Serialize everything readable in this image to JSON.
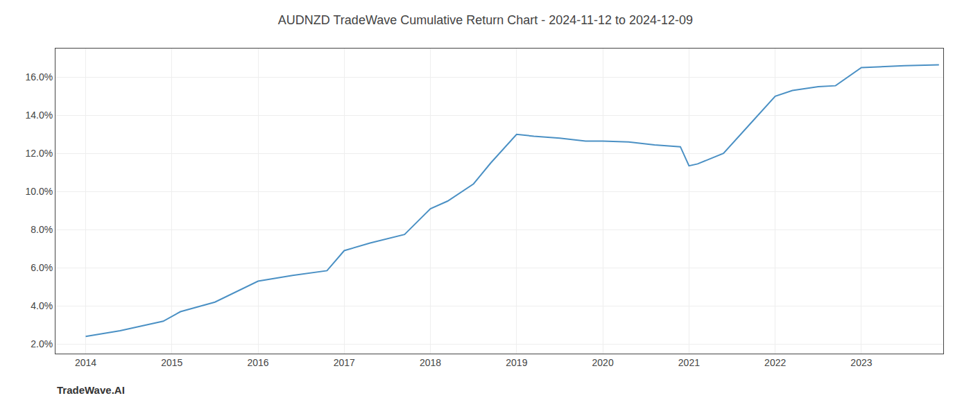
{
  "chart_data": {
    "type": "line",
    "title": "AUDNZD TradeWave Cumulative Return Chart - 2024-11-12 to 2024-12-09",
    "annotations": [
      "TradeWave.AI"
    ],
    "x": [
      2014.0,
      2014.4,
      2014.9,
      2015.1,
      2015.5,
      2016.0,
      2016.4,
      2016.8,
      2017.0,
      2017.3,
      2017.7,
      2018.0,
      2018.2,
      2018.5,
      2018.7,
      2019.0,
      2019.2,
      2019.5,
      2019.8,
      2020.0,
      2020.3,
      2020.6,
      2020.9,
      2021.0,
      2021.1,
      2021.4,
      2021.7,
      2022.0,
      2022.2,
      2022.5,
      2022.7,
      2023.0,
      2023.5,
      2023.9
    ],
    "values": [
      2.4,
      2.7,
      3.2,
      3.7,
      4.2,
      5.3,
      5.6,
      5.85,
      6.9,
      7.3,
      7.75,
      9.1,
      9.5,
      10.4,
      11.5,
      13.0,
      12.9,
      12.8,
      12.65,
      12.65,
      12.6,
      12.45,
      12.35,
      11.35,
      11.45,
      12.0,
      13.5,
      15.0,
      15.3,
      15.5,
      15.55,
      16.5,
      16.6,
      16.65
    ],
    "color": "#4a90c4",
    "xlim": [
      2013.65,
      2023.95
    ],
    "ylim": [
      1.5,
      17.5
    ],
    "xticks": [
      2014,
      2015,
      2016,
      2017,
      2018,
      2019,
      2020,
      2021,
      2022,
      2023
    ],
    "yticks": [
      {
        "value": 2.0,
        "label": "2.0%"
      },
      {
        "value": 4.0,
        "label": "4.0%"
      },
      {
        "value": 6.0,
        "label": "6.0%"
      },
      {
        "value": 8.0,
        "label": "8.0%"
      },
      {
        "value": 10.0,
        "label": "10.0%"
      },
      {
        "value": 12.0,
        "label": "12.0%"
      },
      {
        "value": 14.0,
        "label": "14.0%"
      },
      {
        "value": 16.0,
        "label": "16.0%"
      }
    ],
    "grid": true
  }
}
